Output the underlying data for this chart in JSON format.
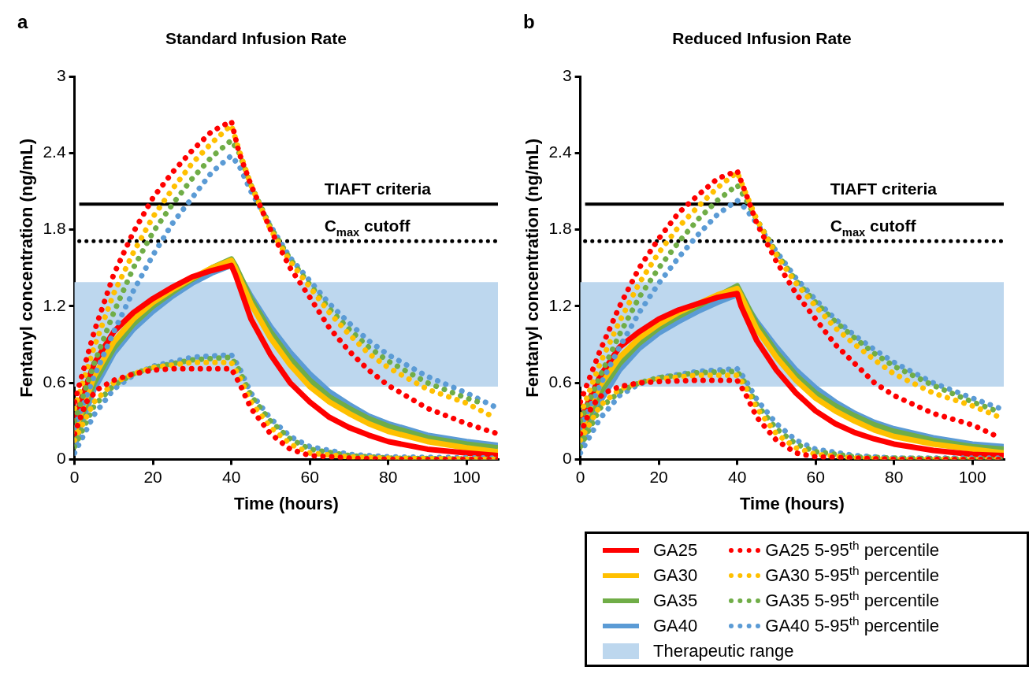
{
  "chart_data": [
    {
      "type": "line",
      "title": "Standard Infusion Rate",
      "xlabel": "Time (hours)",
      "ylabel": "Fentanyl concentration (ng/mL)",
      "annotations": [
        "a"
      ],
      "xlim": [
        0,
        108
      ],
      "xticks": [
        0,
        20,
        40,
        60,
        80,
        100
      ],
      "ylim": [
        0,
        3
      ],
      "yticks": [
        0,
        0.6,
        1.2,
        1.8,
        2.4,
        3
      ],
      "grid": false,
      "legend": false,
      "ref_lines": [
        {
          "axis": "y",
          "value": 2.0,
          "label": "TIAFT criteria",
          "color": "#000000",
          "line_style": "solid"
        },
        {
          "axis": "y",
          "value": 1.71,
          "label": "C$_{max}$ cutoff",
          "color": "#000000",
          "line_style": "dotted"
        }
      ],
      "bands": [
        {
          "axis": "y",
          "from": 0.57,
          "to": 1.39,
          "color": "#bdd7ee"
        }
      ],
      "series": [
        {
          "color": "#ff0000",
          "line_style": "dotted",
          "x": [
            0,
            5,
            10,
            15,
            20,
            25,
            30,
            35,
            40,
            42,
            45,
            50,
            55,
            60,
            65,
            70,
            75,
            80,
            90,
            100,
            108
          ],
          "values": [
            0.45,
            1.0,
            1.45,
            1.78,
            2.05,
            2.25,
            2.42,
            2.57,
            2.65,
            2.4,
            2.15,
            1.8,
            1.5,
            1.27,
            1.03,
            0.85,
            0.7,
            0.58,
            0.4,
            0.28,
            0.2
          ]
        },
        {
          "color": "#ff0000",
          "line_style": "dotted",
          "x": [
            0,
            3,
            6,
            10,
            15,
            20,
            25,
            30,
            35,
            40,
            42,
            45,
            50,
            55,
            60,
            70,
            80,
            108
          ],
          "values": [
            0.2,
            0.45,
            0.55,
            0.62,
            0.67,
            0.7,
            0.71,
            0.71,
            0.71,
            0.71,
            0.6,
            0.4,
            0.2,
            0.08,
            0.03,
            0.01,
            0,
            0
          ]
        },
        {
          "color": "#ffc000",
          "line_style": "dotted",
          "x": [
            0,
            5,
            10,
            15,
            20,
            25,
            30,
            35,
            40,
            42,
            45,
            50,
            55,
            60,
            65,
            70,
            75,
            80,
            90,
            100,
            107
          ],
          "values": [
            0.4,
            0.88,
            1.3,
            1.62,
            1.9,
            2.12,
            2.32,
            2.48,
            2.62,
            2.42,
            2.15,
            1.8,
            1.55,
            1.35,
            1.15,
            0.98,
            0.83,
            0.72,
            0.55,
            0.44,
            0.33
          ]
        },
        {
          "color": "#ffc000",
          "line_style": "dotted",
          "x": [
            0,
            5,
            10,
            15,
            20,
            30,
            40,
            42,
            45,
            50,
            55,
            60,
            70,
            80,
            108
          ],
          "values": [
            0.15,
            0.45,
            0.6,
            0.67,
            0.72,
            0.76,
            0.76,
            0.65,
            0.45,
            0.25,
            0.12,
            0.05,
            0.02,
            0.01,
            0
          ]
        },
        {
          "color": "#70ad47",
          "line_style": "dotted",
          "x": [
            0,
            5,
            10,
            15,
            20,
            25,
            30,
            35,
            40,
            42,
            45,
            50,
            55,
            60,
            65,
            70,
            75,
            80,
            90,
            100,
            103
          ],
          "values": [
            0.3,
            0.75,
            1.15,
            1.5,
            1.78,
            2.0,
            2.2,
            2.37,
            2.5,
            2.4,
            2.15,
            1.82,
            1.57,
            1.37,
            1.18,
            1.02,
            0.88,
            0.77,
            0.6,
            0.48,
            0.45
          ]
        },
        {
          "color": "#70ad47",
          "line_style": "dotted",
          "x": [
            0,
            5,
            10,
            15,
            20,
            30,
            40,
            42,
            45,
            50,
            55,
            60,
            70,
            80,
            108
          ],
          "values": [
            0.1,
            0.42,
            0.58,
            0.67,
            0.72,
            0.78,
            0.8,
            0.7,
            0.5,
            0.3,
            0.16,
            0.08,
            0.03,
            0.01,
            0
          ]
        },
        {
          "color": "#5b9bd5",
          "line_style": "dotted",
          "x": [
            0,
            5,
            10,
            15,
            20,
            25,
            30,
            35,
            40,
            42,
            45,
            50,
            55,
            60,
            65,
            70,
            75,
            80,
            90,
            100,
            108
          ],
          "values": [
            0.25,
            0.65,
            1.0,
            1.32,
            1.6,
            1.85,
            2.05,
            2.25,
            2.38,
            2.3,
            2.1,
            1.83,
            1.58,
            1.4,
            1.22,
            1.07,
            0.93,
            0.82,
            0.65,
            0.52,
            0.4
          ]
        },
        {
          "color": "#5b9bd5",
          "line_style": "dotted",
          "x": [
            0,
            5,
            10,
            15,
            20,
            30,
            40,
            42,
            45,
            50,
            55,
            60,
            70,
            80,
            108
          ],
          "values": [
            0.05,
            0.35,
            0.55,
            0.66,
            0.73,
            0.8,
            0.82,
            0.72,
            0.52,
            0.32,
            0.18,
            0.1,
            0.04,
            0.02,
            0.01
          ]
        },
        {
          "color": "#ff0000",
          "line_style": "solid",
          "x": [
            0,
            2,
            5,
            10,
            15,
            20,
            25,
            30,
            35,
            40,
            41,
            45,
            50,
            55,
            60,
            65,
            70,
            75,
            80,
            90,
            100,
            108
          ],
          "values": [
            0.3,
            0.5,
            0.75,
            1.0,
            1.15,
            1.26,
            1.35,
            1.43,
            1.48,
            1.52,
            1.45,
            1.1,
            0.82,
            0.6,
            0.45,
            0.33,
            0.25,
            0.19,
            0.14,
            0.08,
            0.05,
            0.03
          ]
        },
        {
          "color": "#ffc000",
          "line_style": "solid",
          "x": [
            0,
            2,
            5,
            10,
            15,
            20,
            25,
            30,
            35,
            40,
            41,
            45,
            50,
            55,
            60,
            65,
            70,
            75,
            80,
            90,
            100,
            108
          ],
          "values": [
            0.2,
            0.4,
            0.65,
            0.92,
            1.1,
            1.23,
            1.33,
            1.42,
            1.5,
            1.56,
            1.5,
            1.22,
            0.95,
            0.74,
            0.57,
            0.45,
            0.36,
            0.28,
            0.22,
            0.14,
            0.09,
            0.06
          ]
        },
        {
          "color": "#70ad47",
          "line_style": "solid",
          "x": [
            0,
            2,
            5,
            10,
            15,
            20,
            25,
            30,
            35,
            40,
            41,
            45,
            50,
            55,
            60,
            65,
            70,
            75,
            80,
            90,
            100,
            108
          ],
          "values": [
            0.15,
            0.35,
            0.6,
            0.87,
            1.06,
            1.2,
            1.31,
            1.41,
            1.5,
            1.57,
            1.52,
            1.26,
            1.0,
            0.79,
            0.62,
            0.49,
            0.4,
            0.32,
            0.26,
            0.17,
            0.12,
            0.09
          ]
        },
        {
          "color": "#5b9bd5",
          "line_style": "solid",
          "x": [
            0,
            2,
            5,
            10,
            15,
            20,
            25,
            30,
            35,
            40,
            41,
            45,
            50,
            55,
            60,
            65,
            70,
            75,
            80,
            90,
            100,
            108
          ],
          "values": [
            0.1,
            0.3,
            0.55,
            0.83,
            1.02,
            1.16,
            1.28,
            1.38,
            1.46,
            1.52,
            1.5,
            1.28,
            1.04,
            0.84,
            0.67,
            0.53,
            0.43,
            0.34,
            0.28,
            0.19,
            0.14,
            0.11
          ]
        }
      ]
    },
    {
      "type": "line",
      "title": "Reduced Infusion Rate",
      "xlabel": "Time (hours)",
      "ylabel": "Fentanyl concentration (ng/mL)",
      "annotations": [
        "b"
      ],
      "xlim": [
        0,
        108
      ],
      "xticks": [
        0,
        20,
        40,
        60,
        80,
        100
      ],
      "ylim": [
        0,
        3
      ],
      "yticks": [
        0,
        0.6,
        1.2,
        1.8,
        2.4,
        3
      ],
      "grid": false,
      "legend": "bottom",
      "ref_lines": [
        {
          "axis": "y",
          "value": 2.0,
          "label": "TIAFT criteria",
          "color": "#000000",
          "line_style": "solid"
        },
        {
          "axis": "y",
          "value": 1.71,
          "label": "C$_{max}$ cutoff",
          "color": "#000000",
          "line_style": "dotted"
        }
      ],
      "bands": [
        {
          "axis": "y",
          "from": 0.57,
          "to": 1.39,
          "label": "Therapeutic range",
          "color": "#bdd7ee"
        }
      ],
      "series": [
        {
          "name": "GA25 5-95$^{th}$ percentile",
          "color": "#ff0000",
          "line_style": "dotted",
          "x": [
            0,
            5,
            10,
            15,
            20,
            25,
            30,
            35,
            40,
            42,
            45,
            50,
            55,
            60,
            65,
            70,
            75,
            80,
            90,
            100,
            107
          ],
          "values": [
            0.45,
            0.85,
            1.2,
            1.5,
            1.73,
            1.93,
            2.07,
            2.2,
            2.26,
            2.1,
            1.85,
            1.55,
            1.3,
            1.1,
            0.9,
            0.75,
            0.6,
            0.5,
            0.36,
            0.27,
            0.17
          ]
        },
        {
          "color": "#ff0000",
          "line_style": "dotted",
          "x": [
            0,
            3,
            6,
            10,
            15,
            20,
            30,
            40,
            42,
            45,
            50,
            55,
            60,
            70,
            80,
            108
          ],
          "values": [
            0.2,
            0.42,
            0.52,
            0.57,
            0.6,
            0.61,
            0.62,
            0.62,
            0.52,
            0.33,
            0.15,
            0.05,
            0.02,
            0.01,
            0,
            0
          ]
        },
        {
          "name": "GA30 5-95$^{th}$ percentile",
          "color": "#ffc000",
          "line_style": "dotted",
          "x": [
            0,
            5,
            10,
            15,
            20,
            25,
            30,
            35,
            40,
            42,
            45,
            50,
            55,
            60,
            65,
            70,
            75,
            80,
            90,
            100,
            107
          ],
          "values": [
            0.35,
            0.75,
            1.08,
            1.38,
            1.62,
            1.82,
            1.98,
            2.13,
            2.25,
            2.1,
            1.88,
            1.6,
            1.38,
            1.2,
            1.03,
            0.9,
            0.78,
            0.67,
            0.52,
            0.42,
            0.33
          ]
        },
        {
          "color": "#ffc000",
          "line_style": "dotted",
          "x": [
            0,
            5,
            10,
            15,
            20,
            30,
            40,
            42,
            45,
            50,
            55,
            60,
            70,
            80,
            108
          ],
          "values": [
            0.15,
            0.42,
            0.55,
            0.6,
            0.63,
            0.66,
            0.66,
            0.57,
            0.4,
            0.2,
            0.09,
            0.04,
            0.01,
            0,
            0
          ]
        },
        {
          "name": "GA35 5-95$^{th}$ percentile",
          "color": "#70ad47",
          "line_style": "dotted",
          "x": [
            0,
            5,
            10,
            15,
            20,
            25,
            30,
            35,
            40,
            42,
            45,
            50,
            55,
            60,
            65,
            70,
            75,
            80,
            90,
            100,
            107
          ],
          "values": [
            0.3,
            0.65,
            0.98,
            1.27,
            1.5,
            1.7,
            1.88,
            2.03,
            2.15,
            2.05,
            1.88,
            1.62,
            1.4,
            1.23,
            1.08,
            0.95,
            0.83,
            0.73,
            0.58,
            0.45,
            0.37
          ]
        },
        {
          "color": "#70ad47",
          "line_style": "dotted",
          "x": [
            0,
            5,
            10,
            15,
            20,
            30,
            40,
            42,
            45,
            50,
            55,
            60,
            70,
            80,
            108
          ],
          "values": [
            0.1,
            0.4,
            0.53,
            0.6,
            0.64,
            0.68,
            0.69,
            0.6,
            0.43,
            0.24,
            0.12,
            0.06,
            0.02,
            0.01,
            0
          ]
        },
        {
          "name": "GA40 5-95$^{th}$ percentile",
          "color": "#5b9bd5",
          "line_style": "dotted",
          "x": [
            0,
            5,
            10,
            15,
            20,
            25,
            30,
            35,
            40,
            42,
            45,
            50,
            55,
            60,
            65,
            70,
            75,
            80,
            90,
            100,
            107
          ],
          "values": [
            0.25,
            0.58,
            0.88,
            1.15,
            1.38,
            1.58,
            1.76,
            1.92,
            2.03,
            1.97,
            1.85,
            1.63,
            1.42,
            1.25,
            1.1,
            0.97,
            0.86,
            0.76,
            0.6,
            0.48,
            0.4
          ]
        },
        {
          "color": "#5b9bd5",
          "line_style": "dotted",
          "x": [
            0,
            5,
            10,
            15,
            20,
            30,
            40,
            42,
            45,
            50,
            55,
            60,
            70,
            80,
            108
          ],
          "values": [
            0.05,
            0.32,
            0.5,
            0.59,
            0.64,
            0.69,
            0.71,
            0.63,
            0.47,
            0.28,
            0.15,
            0.08,
            0.03,
            0.01,
            0.01
          ]
        },
        {
          "name": "GA25",
          "color": "#ff0000",
          "line_style": "solid",
          "x": [
            0,
            2,
            5,
            10,
            15,
            20,
            25,
            30,
            35,
            40,
            41,
            45,
            50,
            55,
            60,
            65,
            70,
            75,
            80,
            90,
            100,
            108
          ],
          "values": [
            0.3,
            0.45,
            0.65,
            0.88,
            1.0,
            1.1,
            1.17,
            1.22,
            1.27,
            1.3,
            1.2,
            0.93,
            0.7,
            0.52,
            0.38,
            0.28,
            0.21,
            0.16,
            0.12,
            0.07,
            0.04,
            0.03
          ]
        },
        {
          "name": "GA30",
          "color": "#ffc000",
          "line_style": "solid",
          "x": [
            0,
            2,
            5,
            10,
            15,
            20,
            25,
            30,
            35,
            40,
            41,
            45,
            50,
            55,
            60,
            65,
            70,
            75,
            80,
            90,
            100,
            108
          ],
          "values": [
            0.2,
            0.38,
            0.58,
            0.8,
            0.95,
            1.06,
            1.15,
            1.22,
            1.29,
            1.34,
            1.28,
            1.02,
            0.8,
            0.62,
            0.48,
            0.38,
            0.3,
            0.23,
            0.18,
            0.12,
            0.08,
            0.05
          ]
        },
        {
          "name": "GA35",
          "color": "#70ad47",
          "line_style": "solid",
          "x": [
            0,
            2,
            5,
            10,
            15,
            20,
            25,
            30,
            35,
            40,
            41,
            45,
            50,
            55,
            60,
            65,
            70,
            75,
            80,
            90,
            100,
            108
          ],
          "values": [
            0.15,
            0.32,
            0.52,
            0.75,
            0.91,
            1.03,
            1.12,
            1.2,
            1.28,
            1.36,
            1.3,
            1.06,
            0.84,
            0.66,
            0.52,
            0.42,
            0.34,
            0.27,
            0.22,
            0.15,
            0.1,
            0.08
          ]
        },
        {
          "name": "GA40",
          "color": "#5b9bd5",
          "line_style": "solid",
          "x": [
            0,
            2,
            5,
            10,
            15,
            20,
            25,
            30,
            35,
            40,
            41,
            45,
            50,
            55,
            60,
            65,
            70,
            75,
            80,
            90,
            100,
            108
          ],
          "values": [
            0.1,
            0.25,
            0.45,
            0.7,
            0.87,
            0.99,
            1.08,
            1.16,
            1.23,
            1.29,
            1.27,
            1.08,
            0.88,
            0.7,
            0.56,
            0.45,
            0.36,
            0.29,
            0.24,
            0.17,
            0.12,
            0.1
          ]
        }
      ]
    }
  ]
}
